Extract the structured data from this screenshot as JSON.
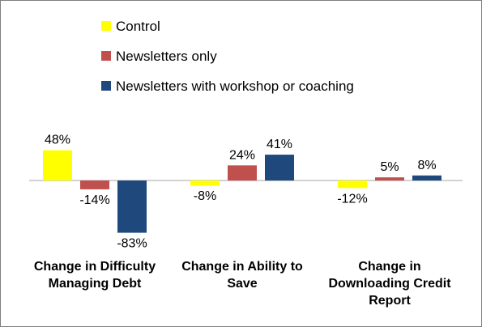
{
  "chart_data": {
    "type": "bar",
    "categories": [
      [
        "Change in Difficulty",
        "Managing Debt"
      ],
      [
        "Change in Ability to",
        "Save"
      ],
      [
        "Change in",
        "Downloading Credit",
        "Report"
      ]
    ],
    "series": [
      {
        "name": "Control",
        "color": "#ffff00",
        "values": [
          48,
          -8,
          -12
        ]
      },
      {
        "name": "Newsletters only",
        "color": "#c0504d",
        "values": [
          -14,
          24,
          5
        ]
      },
      {
        "name": "Newsletters with workshop or coaching",
        "color": "#1f497d",
        "values": [
          -83,
          41,
          8
        ]
      }
    ],
    "value_suffix": "%",
    "legend_position": "top",
    "axes_visible": false,
    "grid": false
  }
}
